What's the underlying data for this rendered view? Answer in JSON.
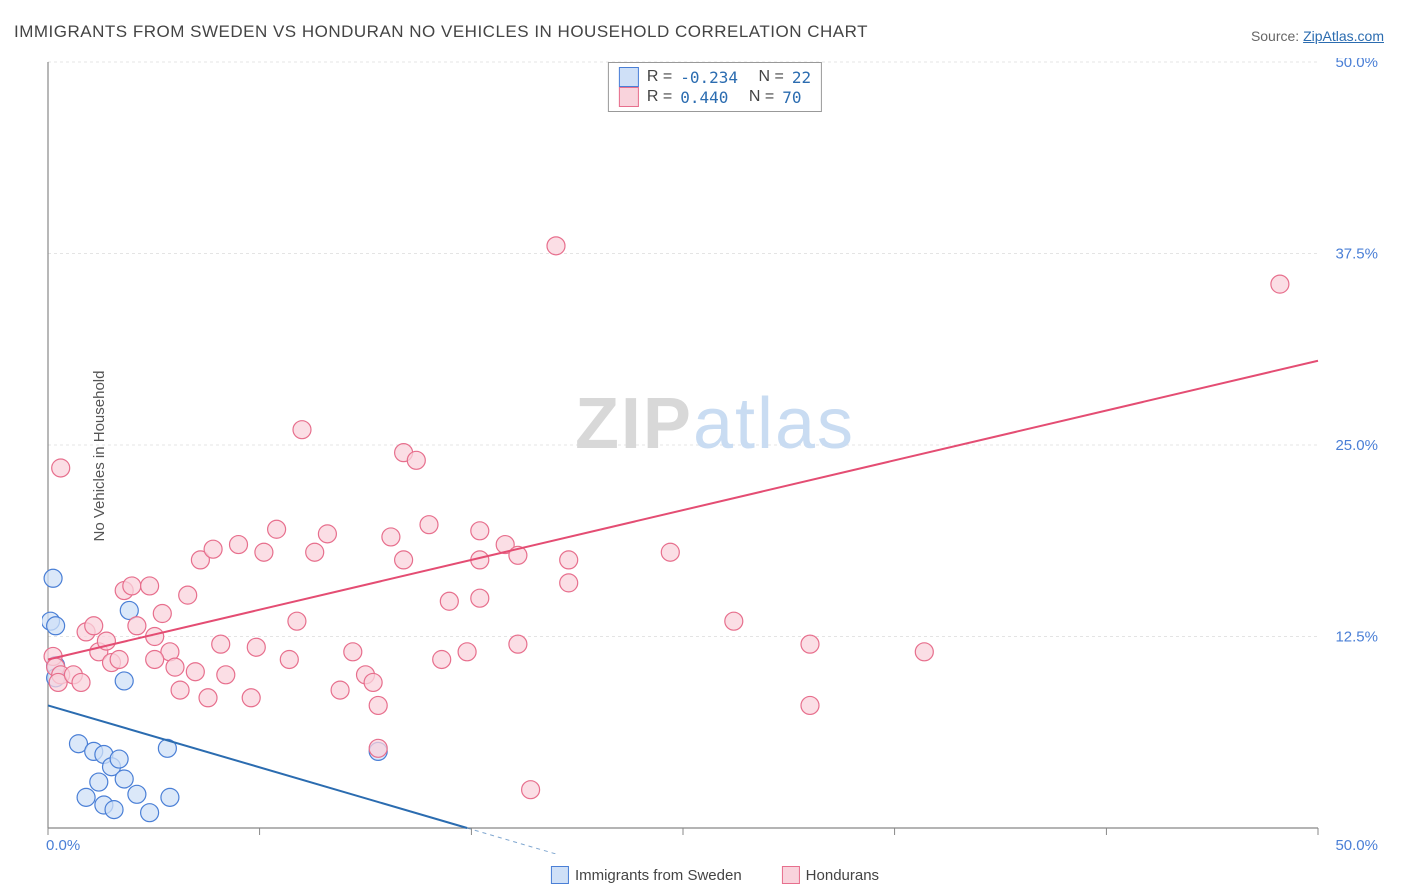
{
  "title": "IMMIGRANTS FROM SWEDEN VS HONDURAN NO VEHICLES IN HOUSEHOLD CORRELATION CHART",
  "source_label": "Source: ",
  "source_link": "ZipAtlas.com",
  "ylabel": "No Vehicles in Household",
  "watermark": {
    "zip": "ZIP",
    "atlas": "atlas"
  },
  "chart": {
    "type": "scatter",
    "xlim": [
      0,
      50
    ],
    "ylim": [
      0,
      50
    ],
    "x_ticks": [
      0,
      8.33,
      16.67,
      25,
      33.33,
      41.67,
      50
    ],
    "y_ticks": [
      12.5,
      25,
      37.5,
      50
    ],
    "x_tick_labels_shown": {
      "0": "0.0%",
      "50": "50.0%"
    },
    "y_tick_labels": [
      "12.5%",
      "25.0%",
      "37.5%",
      "50.0%"
    ],
    "grid_color": "#e4e4e4",
    "axis_color": "#888888",
    "background_color": "#ffffff",
    "point_radius": 9,
    "point_stroke_width": 1.2,
    "line_width": 2,
    "series": [
      {
        "name": "Immigrants from Sweden",
        "fill": "#cfe0f7",
        "stroke": "#4a7fd6",
        "line_color": "#2b6cb0",
        "R": "-0.234",
        "N": "22",
        "trend": {
          "x1": 0,
          "y1": 8.0,
          "x2": 16.5,
          "y2": 0,
          "dash_after_x": 16.5,
          "dash_to_x": 30
        },
        "points": [
          [
            0.2,
            16.3
          ],
          [
            0.1,
            13.5
          ],
          [
            0.3,
            13.2
          ],
          [
            0.3,
            10.6
          ],
          [
            0.3,
            9.8
          ],
          [
            3.2,
            14.2
          ],
          [
            3.0,
            9.6
          ],
          [
            1.2,
            5.5
          ],
          [
            1.8,
            5.0
          ],
          [
            2.2,
            4.8
          ],
          [
            2.5,
            4.0
          ],
          [
            2.8,
            4.5
          ],
          [
            2.0,
            3.0
          ],
          [
            3.0,
            3.2
          ],
          [
            3.5,
            2.2
          ],
          [
            4.8,
            2.0
          ],
          [
            1.5,
            2.0
          ],
          [
            2.2,
            1.5
          ],
          [
            2.6,
            1.2
          ],
          [
            4.0,
            1.0
          ],
          [
            4.7,
            5.2
          ],
          [
            13.0,
            5.0
          ]
        ]
      },
      {
        "name": "Hondurans",
        "fill": "#f9d3dc",
        "stroke": "#e76f8d",
        "line_color": "#e44d73",
        "R": "0.440",
        "N": "70",
        "trend": {
          "x1": 0,
          "y1": 11.0,
          "x2": 50,
          "y2": 30.5
        },
        "points": [
          [
            0.5,
            23.5
          ],
          [
            0.2,
            11.2
          ],
          [
            0.3,
            10.5
          ],
          [
            0.5,
            10.0
          ],
          [
            0.4,
            9.5
          ],
          [
            1.5,
            12.8
          ],
          [
            1.8,
            13.2
          ],
          [
            2.0,
            11.5
          ],
          [
            2.3,
            12.2
          ],
          [
            2.5,
            10.8
          ],
          [
            2.8,
            11.0
          ],
          [
            1.0,
            10.0
          ],
          [
            1.3,
            9.5
          ],
          [
            3.0,
            15.5
          ],
          [
            3.3,
            15.8
          ],
          [
            3.5,
            13.2
          ],
          [
            4.0,
            15.8
          ],
          [
            4.2,
            12.5
          ],
          [
            4.5,
            14.0
          ],
          [
            4.8,
            11.5
          ],
          [
            5.0,
            10.5
          ],
          [
            5.2,
            9.0
          ],
          [
            5.5,
            15.2
          ],
          [
            5.8,
            10.2
          ],
          [
            6.0,
            17.5
          ],
          [
            6.3,
            8.5
          ],
          [
            6.5,
            18.2
          ],
          [
            6.8,
            12.0
          ],
          [
            7.0,
            10.0
          ],
          [
            7.5,
            18.5
          ],
          [
            8.0,
            8.5
          ],
          [
            8.2,
            11.8
          ],
          [
            8.5,
            18.0
          ],
          [
            9.0,
            19.5
          ],
          [
            9.5,
            11.0
          ],
          [
            9.8,
            13.5
          ],
          [
            10.0,
            26.0
          ],
          [
            10.5,
            18.0
          ],
          [
            11.0,
            19.2
          ],
          [
            11.5,
            9.0
          ],
          [
            12.0,
            11.5
          ],
          [
            12.5,
            10.0
          ],
          [
            12.8,
            9.5
          ],
          [
            13.0,
            8.0
          ],
          [
            13.0,
            5.2
          ],
          [
            13.5,
            19.0
          ],
          [
            14.0,
            24.5
          ],
          [
            14.0,
            17.5
          ],
          [
            14.5,
            24.0
          ],
          [
            15.0,
            19.8
          ],
          [
            15.5,
            11.0
          ],
          [
            15.8,
            14.8
          ],
          [
            16.5,
            11.5
          ],
          [
            17.0,
            19.4
          ],
          [
            17.0,
            15.0
          ],
          [
            17.0,
            17.5
          ],
          [
            18.0,
            18.5
          ],
          [
            18.5,
            12.0
          ],
          [
            18.5,
            17.8
          ],
          [
            19.0,
            2.5
          ],
          [
            20.0,
            38.0
          ],
          [
            20.5,
            17.5
          ],
          [
            20.5,
            16.0
          ],
          [
            24.5,
            18.0
          ],
          [
            27.0,
            13.5
          ],
          [
            30.0,
            8.0
          ],
          [
            30.0,
            12.0
          ],
          [
            34.5,
            11.5
          ],
          [
            48.5,
            35.5
          ],
          [
            4.2,
            11.0
          ]
        ]
      }
    ]
  },
  "legend_stats": {
    "R_label": "R =",
    "N_label": "N ="
  },
  "legend_bottom": [
    {
      "label": "Immigrants from Sweden",
      "fill": "#cfe0f7",
      "stroke": "#4a7fd6"
    },
    {
      "label": "Hondurans",
      "fill": "#f9d3dc",
      "stroke": "#e76f8d"
    }
  ]
}
